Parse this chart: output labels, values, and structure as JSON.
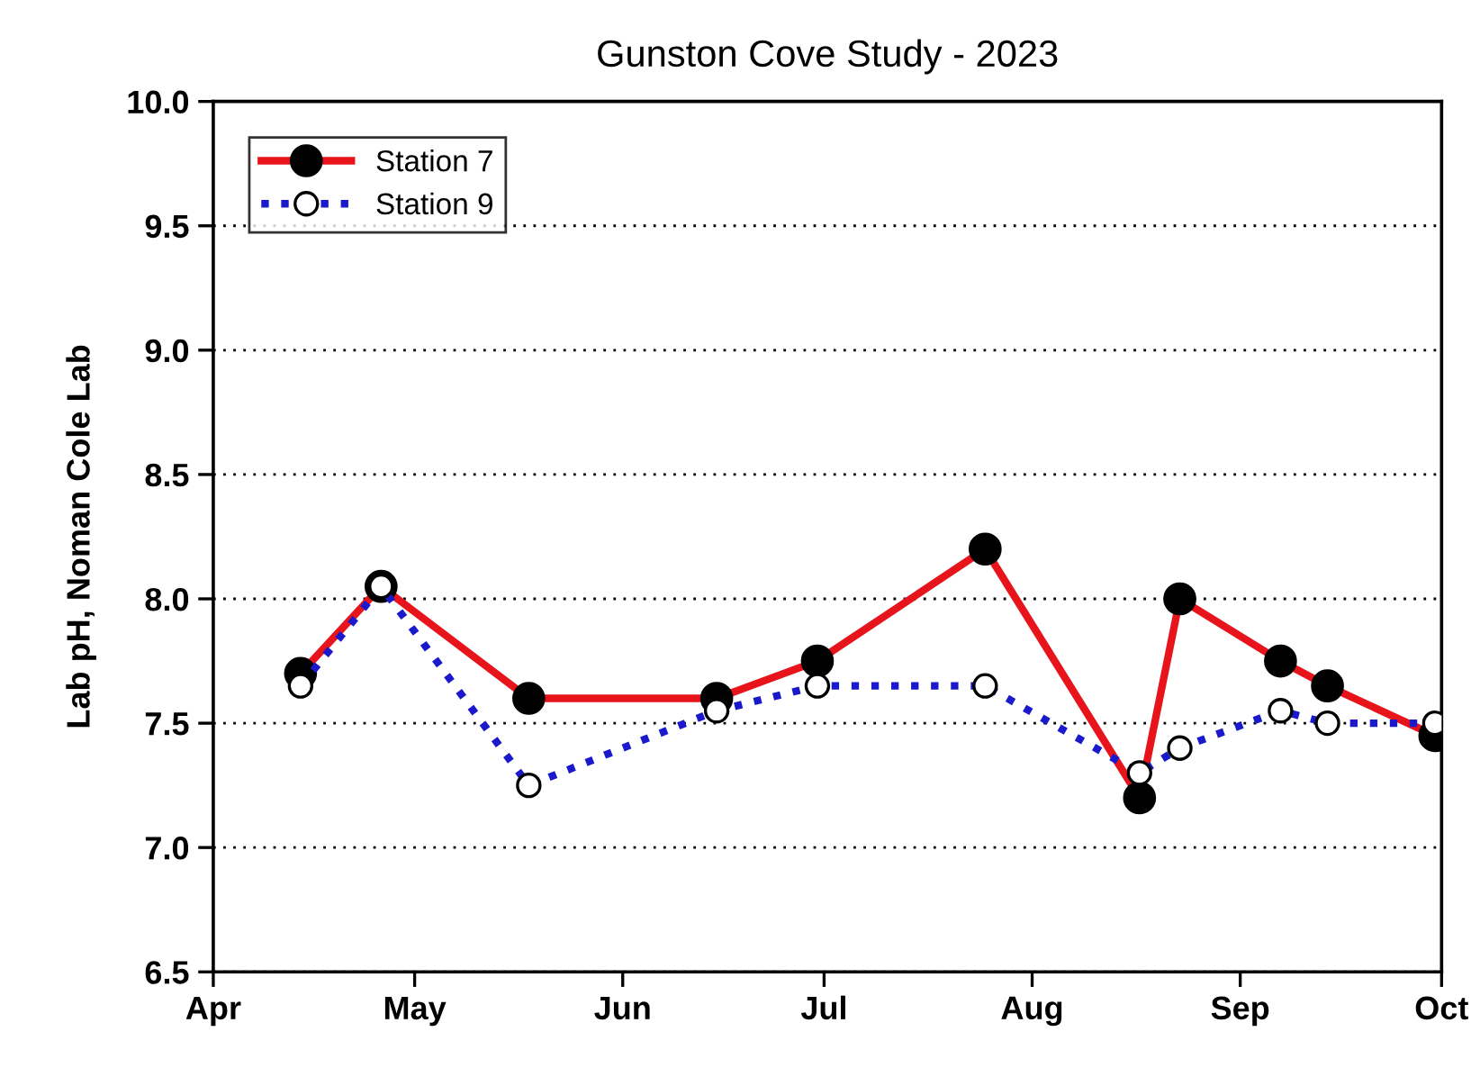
{
  "chart_data": {
    "type": "line",
    "title": "Gunston Cove Study - 2023",
    "ylabel": "Lab pH, Noman Cole Lab",
    "x": [
      "2023-04-14",
      "2023-04-26",
      "2023-05-18",
      "2023-06-15",
      "2023-06-30",
      "2023-07-25",
      "2023-08-17",
      "2023-08-23",
      "2023-09-07",
      "2023-09-14",
      "2023-09-30"
    ],
    "series": [
      {
        "name": "Station 7",
        "color": "#e8141b",
        "line_style": "solid",
        "values": [
          7.7,
          8.05,
          7.6,
          7.6,
          7.75,
          8.2,
          7.2,
          8.0,
          7.75,
          7.65,
          7.45
        ]
      },
      {
        "name": "Station 9",
        "color": "#1a1acc",
        "line_style": "dotted",
        "values": [
          7.65,
          8.05,
          7.25,
          7.55,
          7.65,
          7.65,
          7.3,
          7.4,
          7.55,
          7.5,
          7.5
        ]
      }
    ],
    "marker": "circle",
    "xlim": [
      "2023-04-01",
      "2023-10-01"
    ],
    "xticks": [
      {
        "value": "2023-04-01",
        "label": "Apr"
      },
      {
        "value": "2023-05-01",
        "label": "May"
      },
      {
        "value": "2023-06-01",
        "label": "Jun"
      },
      {
        "value": "2023-07-01",
        "label": "Jul"
      },
      {
        "value": "2023-08-01",
        "label": "Aug"
      },
      {
        "value": "2023-09-01",
        "label": "Sep"
      },
      {
        "value": "2023-10-01",
        "label": "Oct"
      }
    ],
    "ylim": [
      6.5,
      10.0
    ],
    "yticks": [
      {
        "value": 6.5,
        "label": "6.5"
      },
      {
        "value": 7,
        "label": "7.0"
      },
      {
        "value": 7.5,
        "label": "7.5"
      },
      {
        "value": 8,
        "label": "8.0"
      },
      {
        "value": 8.5,
        "label": "8.5"
      },
      {
        "value": 9,
        "label": "9.0"
      },
      {
        "value": 9.5,
        "label": "9.5"
      },
      {
        "value": 10,
        "label": "10.0"
      }
    ],
    "grid": "y",
    "legend": "top left"
  }
}
